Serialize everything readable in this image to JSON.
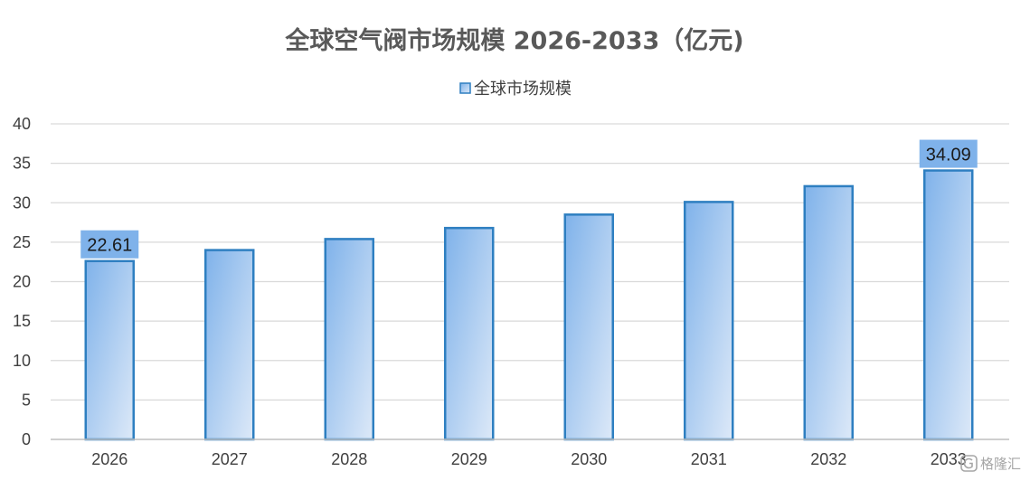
{
  "chart_data": {
    "type": "bar",
    "title": "全球空气阀市场规模 2026-2033（亿元)",
    "categories": [
      "2026",
      "2027",
      "2028",
      "2029",
      "2030",
      "2031",
      "2032",
      "2033"
    ],
    "series": [
      {
        "name": "全球市场规模",
        "values": [
          22.61,
          24.0,
          25.4,
          26.8,
          28.5,
          30.1,
          32.1,
          34.09
        ]
      }
    ],
    "data_labels": [
      {
        "category": "2026",
        "text": "22.61"
      },
      {
        "category": "2033",
        "text": "34.09"
      }
    ],
    "ylim": [
      0,
      40
    ],
    "yticks": [
      "0",
      "5",
      "10",
      "15",
      "20",
      "25",
      "30",
      "35",
      "40"
    ],
    "xlabel": "",
    "ylabel": "",
    "grid": true,
    "legend_position": "top-center",
    "colors": {
      "bar_fill_dark": "#7fb2ea",
      "bar_fill_light": "#dde9f8",
      "bar_border": "#2e7fc1",
      "label_bg": "#7fb2ea",
      "grid": "#d9d9d9",
      "axis": "#bfbfbf"
    }
  },
  "watermark": {
    "text": "格隆汇",
    "icon": "gelonghui-logo-icon"
  }
}
